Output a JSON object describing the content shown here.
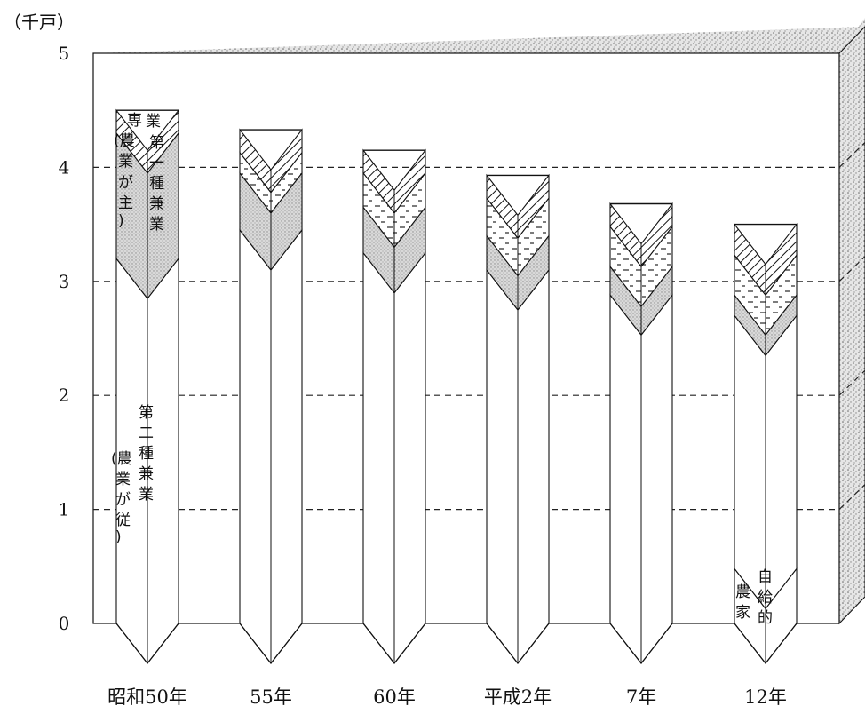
{
  "chart_data": {
    "type": "bar",
    "stacked": true,
    "unit_label": "（千戸）",
    "ylim": [
      0,
      5
    ],
    "y_ticks": [
      "0",
      "1",
      "2",
      "3",
      "4",
      "5"
    ],
    "grid": true,
    "categories": [
      "昭和50年",
      "55年",
      "60年",
      "平成2年",
      "7年",
      "12年"
    ],
    "series": [
      {
        "name": "自給的農家",
        "values": [
          0,
          0,
          0,
          0,
          0,
          0.48
        ],
        "pattern": "white"
      },
      {
        "name": "第二種兼業（農業が従）",
        "values": [
          3.2,
          3.45,
          3.25,
          3.1,
          2.88,
          2.22
        ],
        "pattern": "white"
      },
      {
        "name": "第一種兼業（農業が主）",
        "values": [
          1.1,
          0.5,
          0.4,
          0.3,
          0.25,
          0.18
        ],
        "pattern": "dots"
      },
      {
        "name": "",
        "values": [
          0,
          0.18,
          0.3,
          0.33,
          0.35,
          0.35
        ],
        "pattern": "dashes"
      },
      {
        "name": "専業",
        "values": [
          0.2,
          0.2,
          0.2,
          0.2,
          0.2,
          0.27
        ],
        "pattern": "hatch"
      }
    ]
  }
}
